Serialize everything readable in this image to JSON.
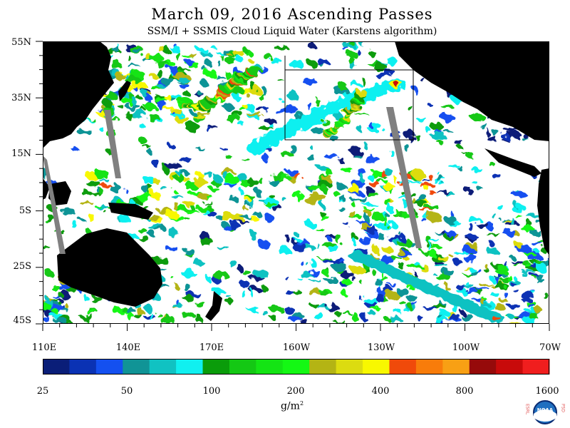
{
  "title": "March 09, 2016  Ascending Passes",
  "subtitle": "SSM/I + SSMIS Cloud Liquid Water (Karstens algorithm)",
  "lat_labels": [
    "55N",
    "35N",
    "15N",
    "5S",
    "25S",
    "45S"
  ],
  "lon_labels": [
    "110E",
    "140E",
    "170E",
    "160W",
    "130W",
    "100W",
    "70W"
  ],
  "colorbar": {
    "colors": [
      "#0a1e78",
      "#0a32b4",
      "#1450f0",
      "#109496",
      "#10c2c2",
      "#10f0f0",
      "#0a9c0a",
      "#14c814",
      "#14e414",
      "#14f814",
      "#b4b414",
      "#dcdc10",
      "#f8f800",
      "#f04a0a",
      "#f87c0a",
      "#f8a014",
      "#960a0a",
      "#c80a0a",
      "#f01e1e"
    ],
    "tick_labels": [
      "25",
      "50",
      "100",
      "200",
      "400",
      "800",
      "1600"
    ]
  },
  "units": "g/m",
  "units_exp": "2",
  "logo": {
    "text": "NOAA",
    "left_text": "ESRL",
    "right_text": "PSD"
  },
  "colors": {
    "land": "#000000",
    "no_data_swath_gap": "#808080",
    "no_cloud": "#ffffff"
  }
}
